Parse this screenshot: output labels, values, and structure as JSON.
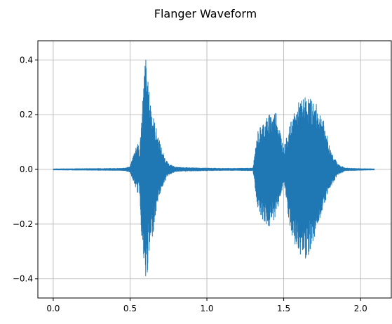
{
  "chart_data": {
    "type": "line",
    "title": "Flanger Waveform",
    "xlabel": "",
    "ylabel": "",
    "xlim": [
      -0.1,
      2.2
    ],
    "ylim": [
      -0.47,
      0.47
    ],
    "grid": true,
    "color": "#1f77b4",
    "x_ticks": [
      0.0,
      0.5,
      1.0,
      1.5,
      2.0
    ],
    "x_tick_labels": [
      "0.0",
      "0.5",
      "1.0",
      "1.5",
      "2.0"
    ],
    "y_ticks": [
      0.4,
      0.2,
      0.0,
      -0.2,
      -0.4
    ],
    "y_tick_labels": [
      "0.4",
      "0.2",
      "0.0",
      "−0.2",
      "−0.4"
    ],
    "series": [
      {
        "values_description_note": "",
        "x": [
          0.0,
          0.45,
          0.5,
          0.55,
          0.56,
          0.58,
          0.6,
          0.62,
          0.65,
          0.68,
          0.7,
          0.72,
          0.75,
          0.8,
          0.9,
          1.0,
          1.1,
          1.2,
          1.3,
          1.33,
          1.36,
          1.4,
          1.45,
          1.5,
          1.55,
          1.6,
          1.65,
          1.7,
          1.75,
          1.8,
          1.85,
          1.9,
          1.95,
          2.0,
          2.09
        ],
        "upper": [
          0.002,
          0.004,
          0.01,
          0.11,
          0.05,
          0.25,
          0.43,
          0.3,
          0.2,
          0.13,
          0.09,
          0.05,
          0.02,
          0.008,
          0.006,
          0.005,
          0.004,
          0.004,
          0.005,
          0.14,
          0.17,
          0.2,
          0.22,
          0.08,
          0.18,
          0.25,
          0.27,
          0.25,
          0.2,
          0.08,
          0.02,
          0.005,
          0.004,
          0.003,
          0.002
        ],
        "lower": [
          -0.002,
          -0.004,
          -0.01,
          -0.09,
          -0.07,
          -0.3,
          -0.44,
          -0.35,
          -0.23,
          -0.12,
          -0.08,
          -0.05,
          -0.02,
          -0.008,
          -0.006,
          -0.005,
          -0.004,
          -0.004,
          -0.005,
          -0.14,
          -0.18,
          -0.22,
          -0.17,
          -0.05,
          -0.26,
          -0.31,
          -0.33,
          -0.25,
          -0.15,
          -0.07,
          -0.02,
          -0.005,
          -0.004,
          -0.003,
          -0.002
        ]
      }
    ]
  }
}
